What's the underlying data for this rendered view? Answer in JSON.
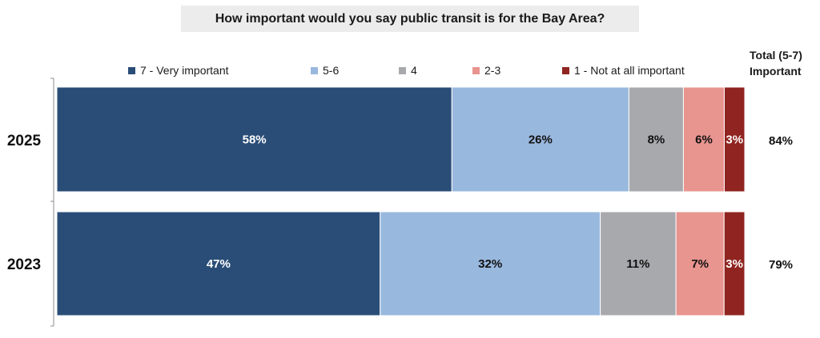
{
  "chart_data": {
    "type": "bar",
    "orientation": "horizontal",
    "stacked": true,
    "title": "How important would you say public transit is for the Bay Area?",
    "categories": [
      "2025",
      "2023"
    ],
    "series": [
      {
        "name": "7 - Very important",
        "color": "#2a4d77",
        "label_color": "#ffffff",
        "values": [
          58,
          47
        ],
        "labels": [
          "58%",
          "47%"
        ]
      },
      {
        "name": "5-6",
        "color": "#99b8de",
        "label_color": "#111111",
        "values": [
          26,
          32
        ],
        "labels": [
          "26%",
          "32%"
        ]
      },
      {
        "name": "4",
        "color": "#a8a9ad",
        "label_color": "#111111",
        "values": [
          8,
          11
        ],
        "labels": [
          "8%",
          "11%"
        ]
      },
      {
        "name": "2-3",
        "color": "#e8948f",
        "label_color": "#111111",
        "values": [
          6,
          7
        ],
        "labels": [
          "6%",
          "7%"
        ]
      },
      {
        "name": "1 - Not at all important",
        "color": "#8f2420",
        "label_color": "#ffffff",
        "values": [
          3,
          3
        ],
        "labels": [
          "3%",
          "3%"
        ]
      }
    ],
    "totals": {
      "header_line1": "Total (5-7)",
      "header_line2": "Important",
      "values": [
        "84%",
        "79%"
      ]
    },
    "xlim": [
      0,
      100
    ],
    "legend_position": "top"
  }
}
